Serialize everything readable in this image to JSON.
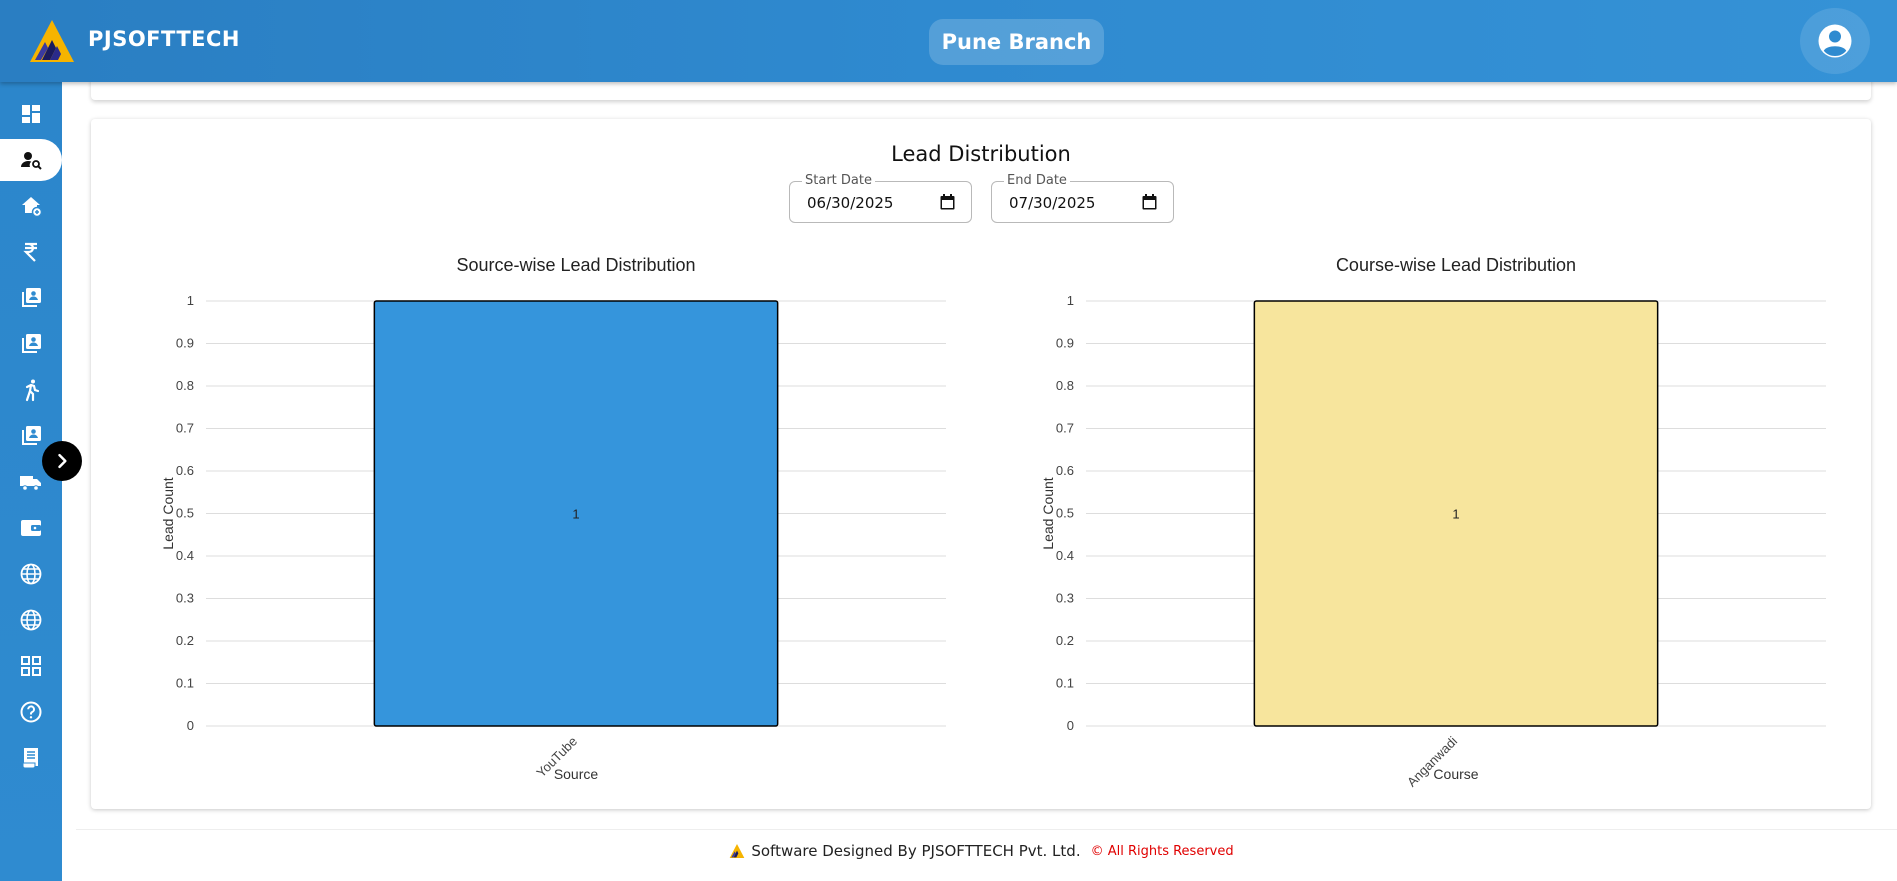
{
  "header": {
    "brand": "PJSOFTTECH",
    "branch": "Pune Branch"
  },
  "sidebar": {
    "items": [
      {
        "icon": "dashboard-icon"
      },
      {
        "icon": "lead-search-icon",
        "active": true
      },
      {
        "icon": "home-add-icon"
      },
      {
        "icon": "rupee-icon"
      },
      {
        "icon": "student-book-icon"
      },
      {
        "icon": "student-book-icon"
      },
      {
        "icon": "walking-person-icon"
      },
      {
        "icon": "student-book-icon"
      },
      {
        "icon": "truck-icon"
      },
      {
        "icon": "wallet-icon"
      },
      {
        "icon": "globe-icon"
      },
      {
        "icon": "globe-icon"
      },
      {
        "icon": "grid-icon"
      },
      {
        "icon": "help-icon"
      },
      {
        "icon": "receipt-icon"
      }
    ]
  },
  "main": {
    "title": "Lead Distribution",
    "start_date": {
      "label": "Start Date",
      "value": "06/30/2025"
    },
    "end_date": {
      "label": "End Date",
      "value": "07/30/2025"
    }
  },
  "chart_data": [
    {
      "type": "bar",
      "title": "Source-wise Lead Distribution",
      "xlabel": "Source",
      "ylabel": "Lead Count",
      "categories": [
        "YouTube"
      ],
      "values": [
        1
      ],
      "data_labels": [
        "1"
      ],
      "ylim": [
        0,
        1
      ],
      "yticks": [
        "0",
        "0.1",
        "0.2",
        "0.3",
        "0.4",
        "0.5",
        "0.6",
        "0.7",
        "0.8",
        "0.9",
        "1"
      ],
      "color": "#3595dc",
      "grid": true
    },
    {
      "type": "bar",
      "title": "Course-wise Lead Distribution",
      "xlabel": "Course",
      "ylabel": "Lead Count",
      "categories": [
        "Anganwadi"
      ],
      "values": [
        1
      ],
      "data_labels": [
        "1"
      ],
      "ylim": [
        0,
        1
      ],
      "yticks": [
        "0",
        "0.1",
        "0.2",
        "0.3",
        "0.4",
        "0.5",
        "0.6",
        "0.7",
        "0.8",
        "0.9",
        "1"
      ],
      "color": "#f7e59d",
      "grid": true
    }
  ],
  "footer": {
    "text": "Software Designed By PJSOFTTECH Pvt. Ltd.",
    "rights": "© All Rights Reserved"
  }
}
